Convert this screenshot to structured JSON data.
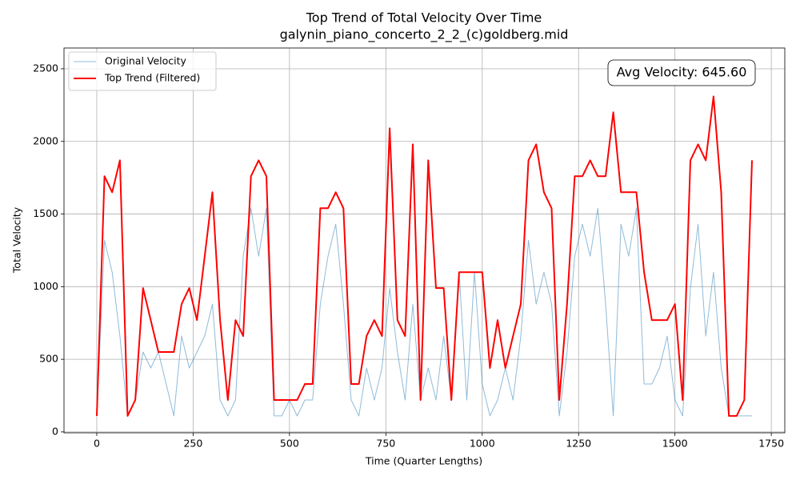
{
  "chart_data": {
    "type": "line",
    "title": "Top Trend of Total Velocity Over Time",
    "subtitle": "galynin_piano_concerto_2_2_(c)goldberg.mid",
    "xlabel": "Time (Quarter Lengths)",
    "ylabel": "Total Velocity",
    "annotation": "Avg Velocity: 645.60",
    "xlim": [
      -85,
      1785
    ],
    "ylim": [
      -6,
      2643
    ],
    "xticks": [
      0,
      250,
      500,
      750,
      1000,
      1250,
      1500,
      1750
    ],
    "yticks": [
      0,
      500,
      1000,
      1500,
      2000,
      2500
    ],
    "grid": true,
    "legend": "upper left",
    "x": [
      0,
      20,
      40,
      60,
      80,
      100,
      120,
      140,
      160,
      180,
      200,
      220,
      240,
      260,
      280,
      300,
      320,
      340,
      360,
      380,
      400,
      420,
      440,
      460,
      480,
      500,
      520,
      540,
      560,
      580,
      600,
      620,
      640,
      660,
      680,
      700,
      720,
      740,
      760,
      780,
      800,
      820,
      840,
      860,
      880,
      900,
      920,
      940,
      960,
      980,
      1000,
      1020,
      1040,
      1060,
      1080,
      1100,
      1120,
      1140,
      1160,
      1180,
      1200,
      1220,
      1240,
      1260,
      1280,
      1300,
      1320,
      1340,
      1360,
      1380,
      1400,
      1420,
      1440,
      1460,
      1480,
      1500,
      1520,
      1540,
      1560,
      1580,
      1600,
      1620,
      1640,
      1660,
      1680,
      1700
    ],
    "series": [
      {
        "name": "Original Velocity",
        "color": "#1f77b4",
        "values": [
          110,
          1320,
          1100,
          660,
          110,
          220,
          550,
          440,
          550,
          330,
          110,
          660,
          440,
          550,
          660,
          880,
          220,
          110,
          220,
          1210,
          1540,
          1210,
          1540,
          110,
          110,
          220,
          110,
          220,
          220,
          880,
          1210,
          1430,
          880,
          220,
          110,
          440,
          220,
          440,
          990,
          550,
          220,
          880,
          220,
          440,
          220,
          660,
          220,
          1100,
          220,
          1100,
          330,
          110,
          220,
          440,
          220,
          660,
          1320,
          880,
          1100,
          880,
          110,
          550,
          1210,
          1430,
          1210,
          1540,
          880,
          110,
          1430,
          1210,
          1540,
          330,
          330,
          440,
          660,
          220,
          110,
          990,
          1430,
          660,
          1100,
          440,
          110,
          110,
          110,
          110
        ]
      },
      {
        "name": "Top Trend (Filtered)",
        "color": "#ff0000",
        "values": [
          110,
          1760,
          1650,
          1870,
          110,
          220,
          990,
          770,
          550,
          550,
          550,
          880,
          990,
          770,
          1210,
          1650,
          770,
          220,
          770,
          660,
          1760,
          1870,
          1760,
          220,
          220,
          220,
          220,
          330,
          330,
          1540,
          1540,
          1650,
          1540,
          330,
          330,
          660,
          770,
          660,
          2090,
          770,
          660,
          1980,
          220,
          1870,
          990,
          990,
          220,
          1100,
          1100,
          1100,
          1100,
          440,
          770,
          440,
          660,
          880,
          1870,
          1980,
          1650,
          1540,
          220,
          880,
          1760,
          1760,
          1870,
          1760,
          1760,
          2200,
          1650,
          1650,
          1650,
          1100,
          770,
          770,
          770,
          880,
          220,
          1870,
          1980,
          1870,
          2310,
          1650,
          110,
          110,
          220,
          1870
        ]
      }
    ]
  }
}
